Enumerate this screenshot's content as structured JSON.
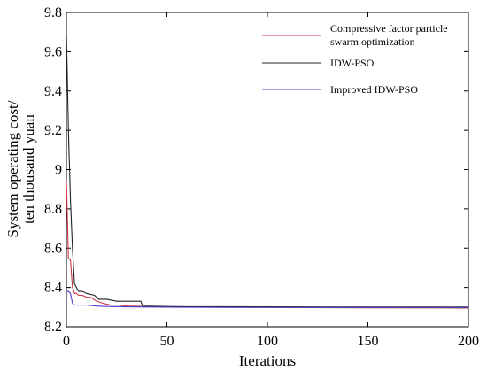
{
  "chart_data": {
    "type": "line",
    "title": "",
    "xlabel": "Iterations",
    "ylabel_lines": [
      "System operating cost/",
      "ten thousand yuan"
    ],
    "xlim": [
      0,
      200
    ],
    "ylim": [
      8.2,
      9.8
    ],
    "xticks": [
      0,
      50,
      100,
      150,
      200
    ],
    "yticks": [
      8.2,
      8.4,
      8.6,
      8.8,
      9.0,
      9.2,
      9.4,
      9.6,
      9.8
    ],
    "xtick_labels": [
      "0",
      "50",
      "100",
      "150",
      "200"
    ],
    "ytick_labels": [
      "8.2",
      "8.4",
      "8.6",
      "8.8",
      "9",
      "9.2",
      "9.4",
      "9.6",
      "9.8"
    ],
    "grid": false,
    "legend_position": "top-right",
    "series": [
      {
        "name_lines": [
          "Compressive factor particle",
          "swarm optimization"
        ],
        "color": "#cc3344",
        "x": [
          0,
          1,
          2,
          3,
          4,
          5,
          6,
          8,
          10,
          12,
          15,
          18,
          22,
          26,
          30,
          40,
          60,
          100,
          150,
          200
        ],
        "y": [
          8.95,
          8.55,
          8.54,
          8.4,
          8.37,
          8.37,
          8.36,
          8.36,
          8.35,
          8.35,
          8.33,
          8.32,
          8.31,
          8.31,
          8.305,
          8.303,
          8.3,
          8.298,
          8.296,
          8.295
        ]
      },
      {
        "name": "IDW-PSO",
        "color": "#222222",
        "x": [
          0,
          1,
          2,
          3,
          4,
          5,
          6,
          8,
          10,
          14,
          16,
          20,
          25,
          30,
          35,
          37,
          38,
          50,
          60,
          100,
          130,
          150,
          200
        ],
        "y": [
          9.7,
          9.2,
          8.85,
          8.6,
          8.42,
          8.4,
          8.38,
          8.38,
          8.37,
          8.36,
          8.34,
          8.34,
          8.33,
          8.33,
          8.33,
          8.33,
          8.305,
          8.303,
          8.302,
          8.301,
          8.3,
          8.3,
          8.3
        ]
      },
      {
        "name": "Improved IDW-PSO",
        "color": "#4b3fc8",
        "x": [
          0,
          1,
          2,
          3,
          4,
          5,
          6,
          8,
          10,
          15,
          20,
          30,
          40,
          60,
          100,
          150,
          200
        ],
        "y": [
          8.38,
          8.38,
          8.37,
          8.32,
          8.31,
          8.31,
          8.31,
          8.31,
          8.31,
          8.305,
          8.303,
          8.301,
          8.3,
          8.299,
          8.298,
          8.297,
          8.297
        ]
      }
    ]
  }
}
